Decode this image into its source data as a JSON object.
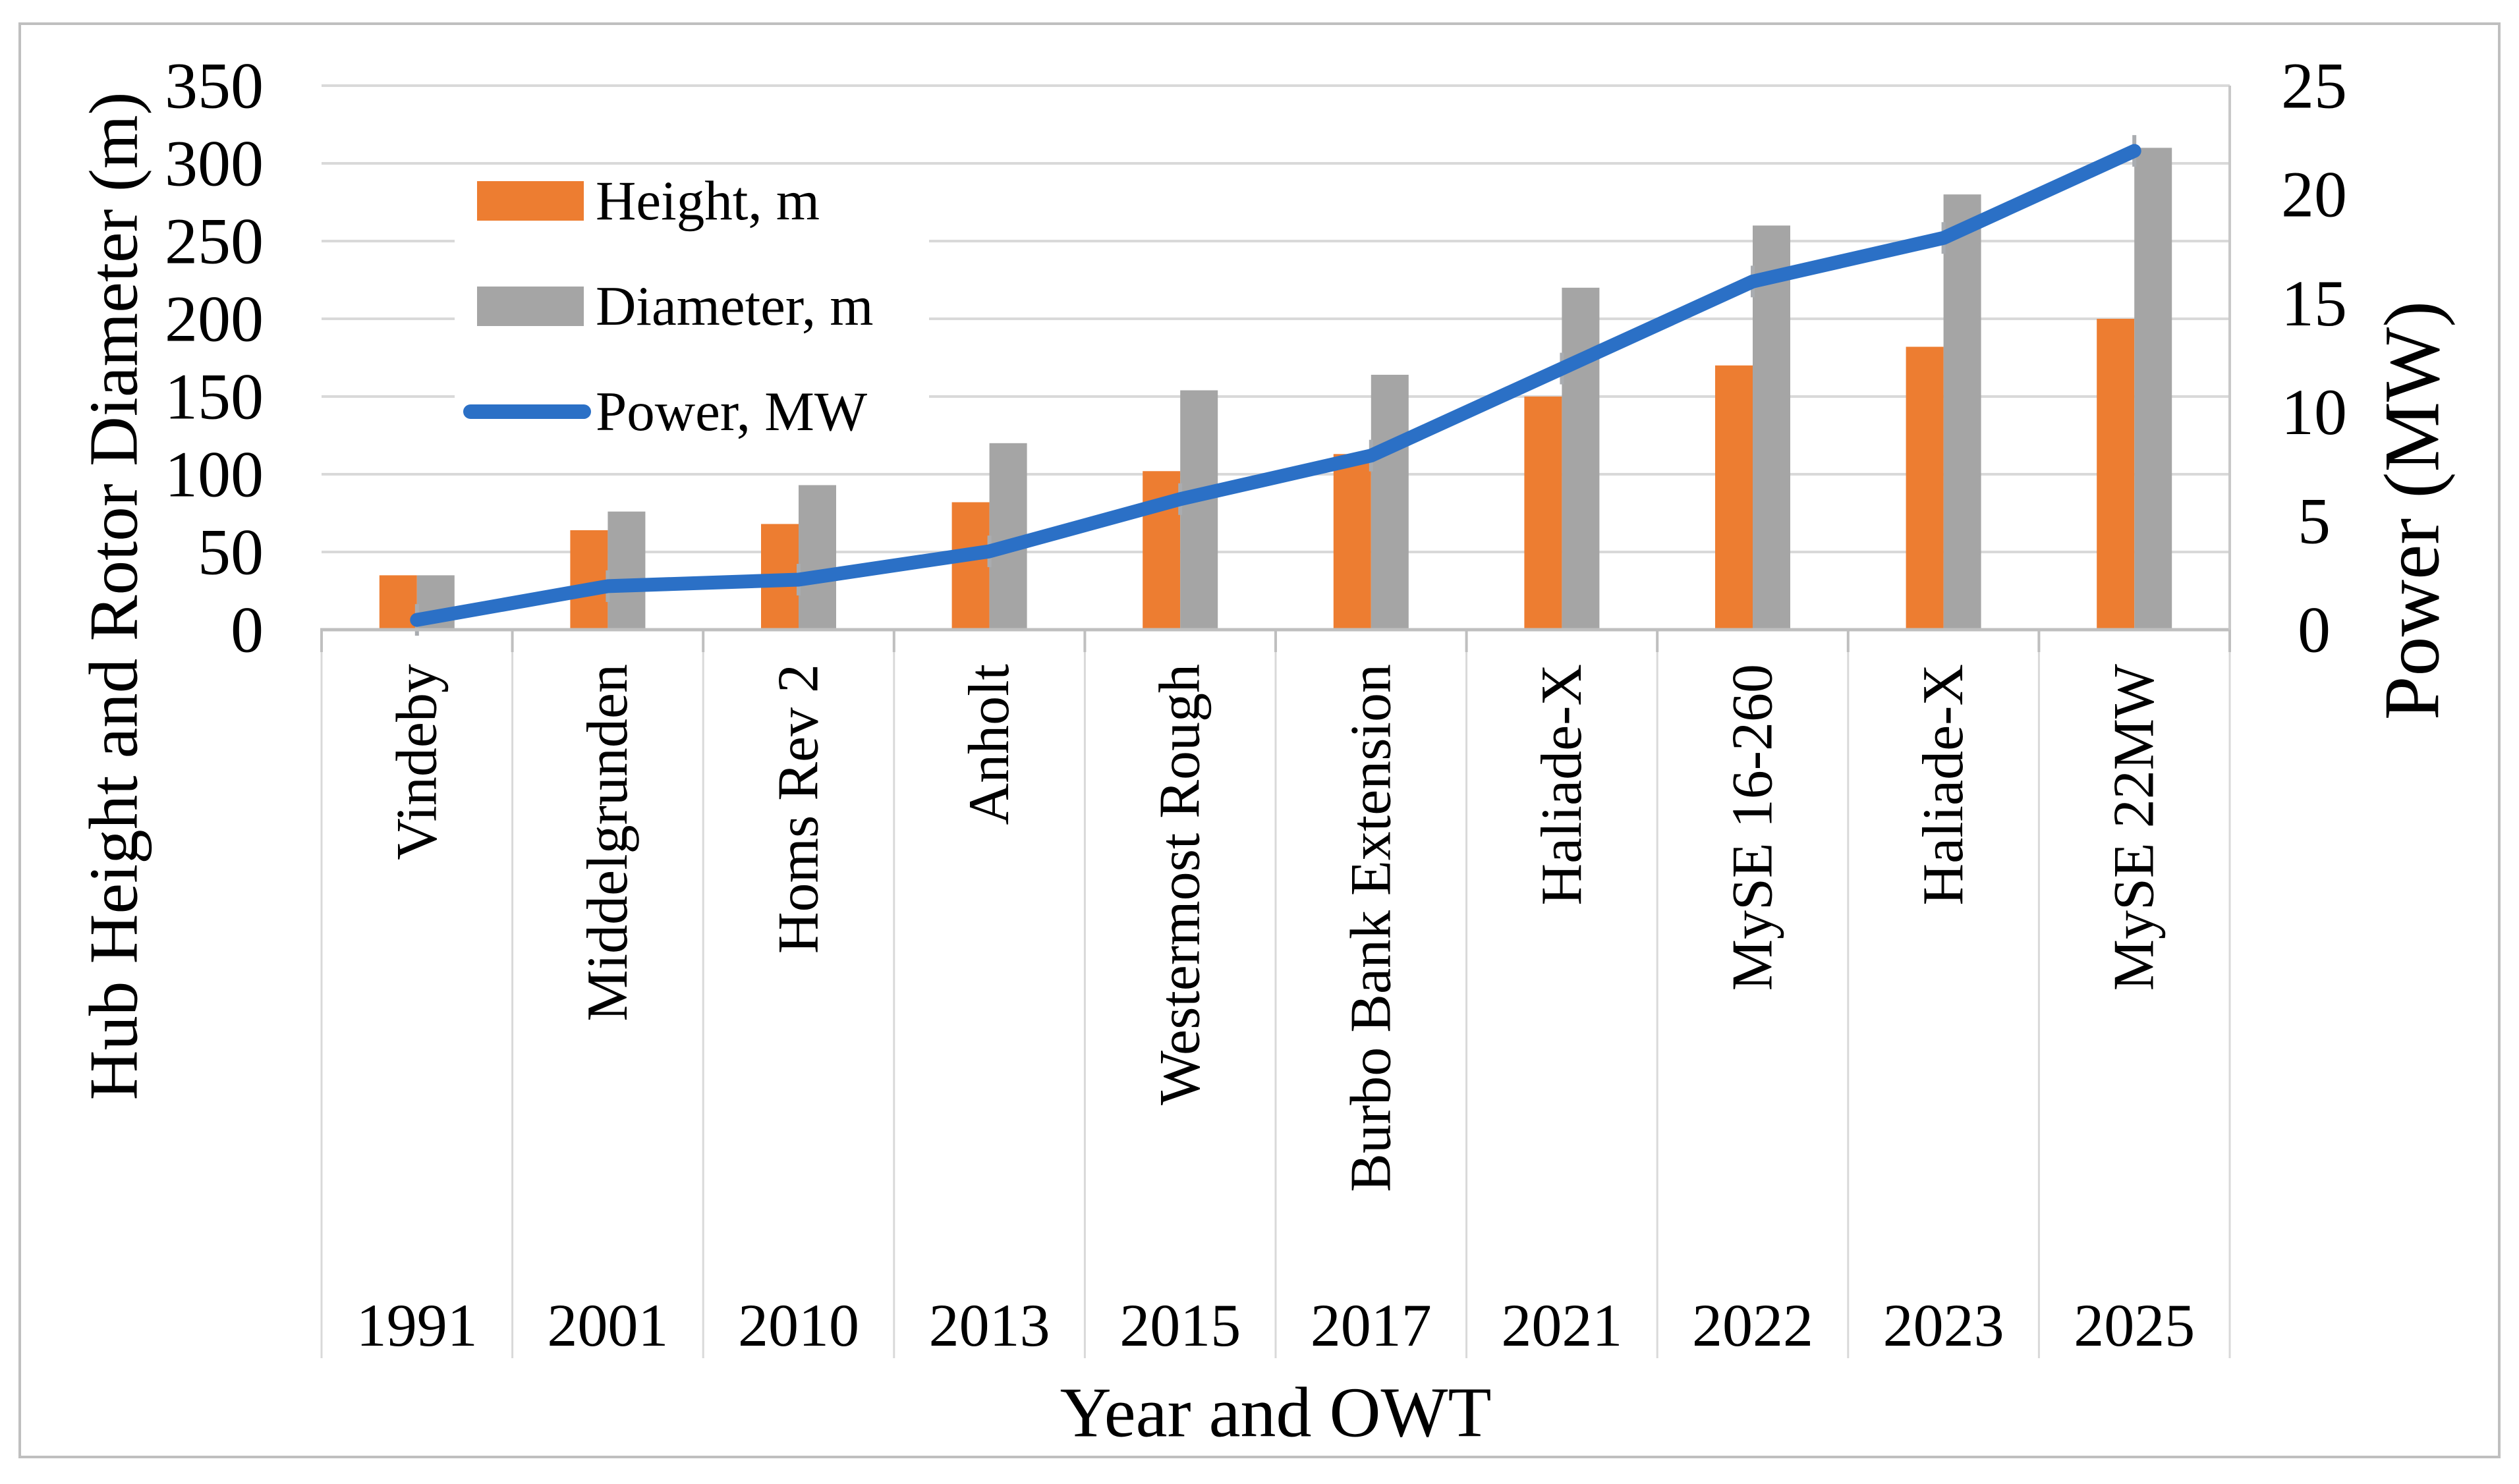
{
  "figure": {
    "background": "#FFFFFF",
    "border_color": "#BFBFBF"
  },
  "chart_data": {
    "type": "bar+line",
    "title": "",
    "categories": [
      "Vindeby",
      "Middelgrunden",
      "Homs Rev 2",
      "Anholt",
      "Westermost Rough",
      "Burbo Bank Extension",
      "Haliade-X",
      "MySE 16-260",
      "Haliade-X",
      "MySE 22MW"
    ],
    "years": [
      "1991",
      "2001",
      "2010",
      "2013",
      "2015",
      "2017",
      "2021",
      "2022",
      "2023",
      "2025"
    ],
    "series": [
      {
        "name": "Height, m",
        "type": "bar",
        "axis": "left",
        "color": "#ED7D31",
        "values": [
          35,
          64,
          68,
          82,
          102,
          113,
          150,
          170,
          182,
          200
        ]
      },
      {
        "name": "Diameter, m",
        "type": "bar",
        "axis": "left",
        "color": "#A5A5A5",
        "values": [
          35,
          76,
          93,
          120,
          154,
          164,
          220,
          260,
          280,
          310
        ]
      },
      {
        "name": "Power, MW",
        "type": "line",
        "axis": "right",
        "color": "#2B70C6",
        "values": [
          0.45,
          2,
          2.3,
          3.6,
          6,
          8,
          12,
          16,
          18,
          22
        ]
      }
    ],
    "left_axis": {
      "title": "Hub Height and Rotor Diameter (m)",
      "min": 0,
      "max": 350,
      "step": 50,
      "tick_labels": [
        "350",
        "300",
        "250",
        "200",
        "150",
        "100",
        "50",
        "0"
      ]
    },
    "right_axis": {
      "title": "Power (MW)",
      "min": 0,
      "max": 25,
      "step": 5,
      "tick_labels": [
        "25",
        "20",
        "15",
        "10",
        "5",
        "0"
      ]
    },
    "x_axis": {
      "title": "Year and OWT"
    },
    "legend": {
      "position": "upper-left-inside",
      "items": [
        "Height, m",
        "Diameter, m",
        "Power, MW"
      ]
    },
    "style": {
      "gridline_color": "#D9D9D9",
      "axis_line_color": "#BFBFBF",
      "secondary_axis_line_color": "#C8C8C8",
      "divider_color": "#D9D9D9",
      "node_tick_color": "#A9ACB0",
      "text_color": "#000000",
      "grid": true
    }
  }
}
